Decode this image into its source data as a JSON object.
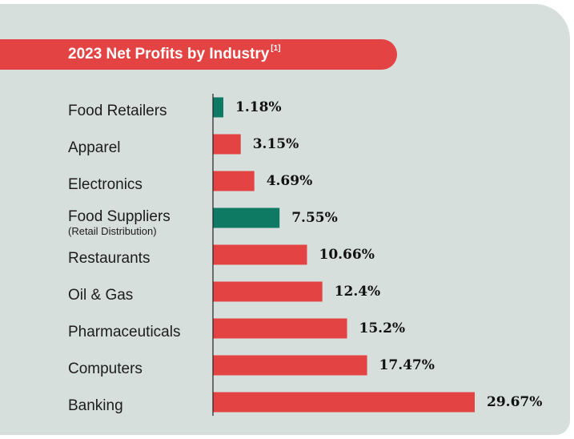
{
  "colors": {
    "panel": "#d7dfdc",
    "accent": "#e34443",
    "highlight": "#0f7a63",
    "axis": "#222222"
  },
  "chart_data": {
    "type": "bar",
    "orientation": "horizontal",
    "title": "2023 Net Profits by Industry",
    "title_note": "[1]",
    "categories": [
      "Food Retailers",
      "Apparel",
      "Electronics",
      "Food Suppliers",
      "Restaurants",
      "Oil & Gas",
      "Pharmaceuticals",
      "Computers",
      "Banking"
    ],
    "category_sublabels": [
      "",
      "",
      "",
      "(Retail Distribution)",
      "",
      "",
      "",
      "",
      ""
    ],
    "values": [
      1.18,
      3.15,
      4.69,
      7.55,
      10.66,
      12.4,
      15.2,
      17.47,
      29.67
    ],
    "value_labels": [
      "1.18%",
      "3.15%",
      "4.69%",
      "7.55%",
      "10.66%",
      "12.4%",
      "15.2%",
      "17.47%",
      "29.67%"
    ],
    "highlighted": [
      true,
      false,
      false,
      true,
      false,
      false,
      false,
      false,
      false
    ],
    "xlim": [
      0,
      29.67
    ],
    "grid": false,
    "legend": "none"
  }
}
